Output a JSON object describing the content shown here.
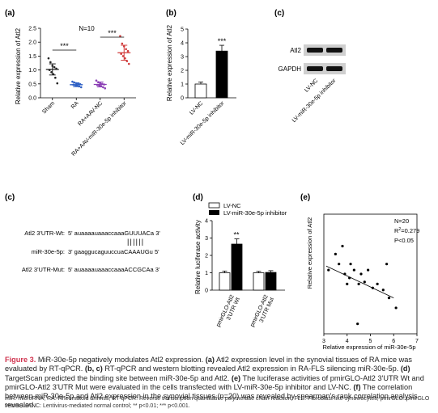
{
  "panels": {
    "a": {
      "label": "(a)",
      "chart_data": {
        "type": "scatter",
        "note": "N=10",
        "categories": [
          "Sham",
          "RA",
          "RA+AAV-NC",
          "RA+AAV-miR-30e-5p inhibitor"
        ],
        "ylabel": "Relative expression of Atl2",
        "ylim": [
          0,
          2.5
        ],
        "yticks": [
          "0.0",
          "0.5",
          "1.0",
          "1.5",
          "2.0",
          "2.5"
        ],
        "means": [
          1.02,
          0.47,
          0.48,
          1.62
        ],
        "errors": [
          0.2,
          0.07,
          0.09,
          0.27
        ],
        "colors": [
          "#222222",
          "#2d5fc4",
          "#8b3fb5",
          "#d03a3a"
        ],
        "points": [
          [
            1.42,
            1.28,
            1.15,
            1.1,
            1.05,
            1.0,
            0.92,
            0.85,
            0.72,
            0.52
          ],
          [
            0.58,
            0.55,
            0.52,
            0.5,
            0.49,
            0.47,
            0.45,
            0.43,
            0.41,
            0.38
          ],
          [
            0.62,
            0.56,
            0.52,
            0.5,
            0.48,
            0.46,
            0.44,
            0.42,
            0.38,
            0.34
          ],
          [
            2.22,
            1.95,
            1.85,
            1.75,
            1.68,
            1.58,
            1.5,
            1.42,
            1.32,
            1.22
          ]
        ],
        "significance": [
          {
            "from": 0,
            "to": 1,
            "label": "***"
          },
          {
            "from": 2,
            "to": 3,
            "label": "***"
          }
        ]
      }
    },
    "b": {
      "label": "(b)",
      "chart_data": {
        "type": "bar",
        "categories": [
          "LV-NC",
          "LV-miR-30e-5p inhibitor"
        ],
        "values": [
          1.0,
          3.4
        ],
        "errors": [
          0.15,
          0.42
        ],
        "ylabel": "Relative expression of Atl2",
        "ylim": [
          0,
          5
        ],
        "yticks": [
          "0",
          "1",
          "2",
          "3",
          "4",
          "5"
        ],
        "fill": [
          "#ffffff",
          "#000000"
        ],
        "significance": "***"
      }
    },
    "c_blot": {
      "label": "(c)",
      "bands": [
        "Atl2",
        "GAPDH"
      ],
      "lanes": [
        "LV-NC",
        "LV-miR-30e-5p inhibitor"
      ]
    },
    "c_seq": {
      "label": "(c)",
      "rows": [
        {
          "name": "Atl2 3'UTR-Wt:",
          "prefix": "5' auaaaauaaaccaaa",
          "core": "GUUUACa",
          "suffix": " 3'"
        },
        {
          "name": "miR-30e-5p:",
          "prefix": "3' gaaggucaguuccua",
          "core": "CAAAUGu",
          "suffix": " 5'"
        },
        {
          "name": "Atl2 3'UTR-Mut:",
          "prefix": "5' auaaaauaaaccaaa",
          "core": "ACCGCAa",
          "suffix": " 3'"
        }
      ],
      "pairs": "||||||"
    },
    "d": {
      "label": "(d)",
      "chart_data": {
        "type": "bar",
        "legend": [
          "LV-NC",
          "LV-miR-30e-5p inhibitor"
        ],
        "categories": [
          "pmirGLO-Atl2 3'UTR Wt",
          "pmirGLO-Atl2 3'UTR Mut"
        ],
        "series": [
          {
            "name": "LV-NC",
            "values": [
              1.0,
              1.0
            ],
            "errors": [
              0.1,
              0.08
            ]
          },
          {
            "name": "LV-miR-30e-5p inhibitor",
            "values": [
              2.65,
              1.02
            ],
            "errors": [
              0.3,
              0.1
            ]
          }
        ],
        "ylabel": "Relative luciferase activity",
        "ylim": [
          0,
          4
        ],
        "yticks": [
          "0",
          "1",
          "2",
          "3",
          "4"
        ],
        "significance": "**"
      }
    },
    "e": {
      "label": "(e)",
      "chart_data": {
        "type": "scatter",
        "xlabel": "Relative expression of miR-30e-5p",
        "ylabel": "Relative expression of Atl2",
        "xlim": [
          3,
          7
        ],
        "ylim": [
          0.2,
          0.8
        ],
        "xticks": [
          "3",
          "4",
          "5",
          "6",
          "7"
        ],
        "annot_n": "N=20",
        "annot_r2": "R",
        "annot_r2_sup": "2",
        "annot_r2_val": "=0.279",
        "annot_p": "P<0.05",
        "fit": {
          "x": [
            3.1,
            6.0
          ],
          "y": [
            0.54,
            0.38
          ]
        },
        "points": [
          {
            "x": 3.2,
            "y": 0.52
          },
          {
            "x": 3.5,
            "y": 0.6
          },
          {
            "x": 3.65,
            "y": 0.55
          },
          {
            "x": 3.8,
            "y": 0.64
          },
          {
            "x": 3.9,
            "y": 0.5
          },
          {
            "x": 4.0,
            "y": 0.45
          },
          {
            "x": 4.1,
            "y": 0.48
          },
          {
            "x": 4.15,
            "y": 0.55
          },
          {
            "x": 4.3,
            "y": 0.52
          },
          {
            "x": 4.45,
            "y": 0.25
          },
          {
            "x": 4.5,
            "y": 0.45
          },
          {
            "x": 4.6,
            "y": 0.5
          },
          {
            "x": 4.75,
            "y": 0.46
          },
          {
            "x": 4.9,
            "y": 0.52
          },
          {
            "x": 5.1,
            "y": 0.43
          },
          {
            "x": 5.3,
            "y": 0.45
          },
          {
            "x": 5.55,
            "y": 0.42
          },
          {
            "x": 5.7,
            "y": 0.55
          },
          {
            "x": 5.8,
            "y": 0.38
          },
          {
            "x": 6.1,
            "y": 0.33
          }
        ]
      }
    }
  },
  "caption": {
    "fig": "Figure 3.",
    "title": " MiR-30e-5p negatively modulates Atl2 expression. ",
    "a": "(a)",
    "a_text": " Atl2 expression level in the synovial tissues of RA mice was evaluated by RT-qPCR. ",
    "bc": "(b, c)",
    "bc_text": " RT-qPCR and western blotting revealed Atl2 expression in RA-FLS silencing miR-30e-5p. ",
    "d": "(d)",
    "d_text": " TargetScan predicted the binding site between miR-30e-5p and Atl2. ",
    "e": "(e)",
    "e_text": " The luciferase activities of pmirGLO-Atl2 3'UTR Wt and pmirGLO-Atl2 3'UTR Mut were evaluated in the cells transfected with LV-miR-30e-5p inhibitor and LV-NC. ",
    "f": "(f)",
    "f_text": " The correlation between miR-30e-5p and Atl2 expression in the synovial tissues (n=20) was revealed by spearman's rank correlation analysis revealed.",
    "footnote": "miR: microRNA; RA: Rheumatoid arthritis; RT-qPCR: Reverse transcription quantitative polymerase chain reaction; FLS: Fibroblast-like synoviocytes; pmirGLO: pmirGLO vector; LV-NC: Lentivirus-mediated normal control; ** p<0.01; *** p<0.001."
  }
}
